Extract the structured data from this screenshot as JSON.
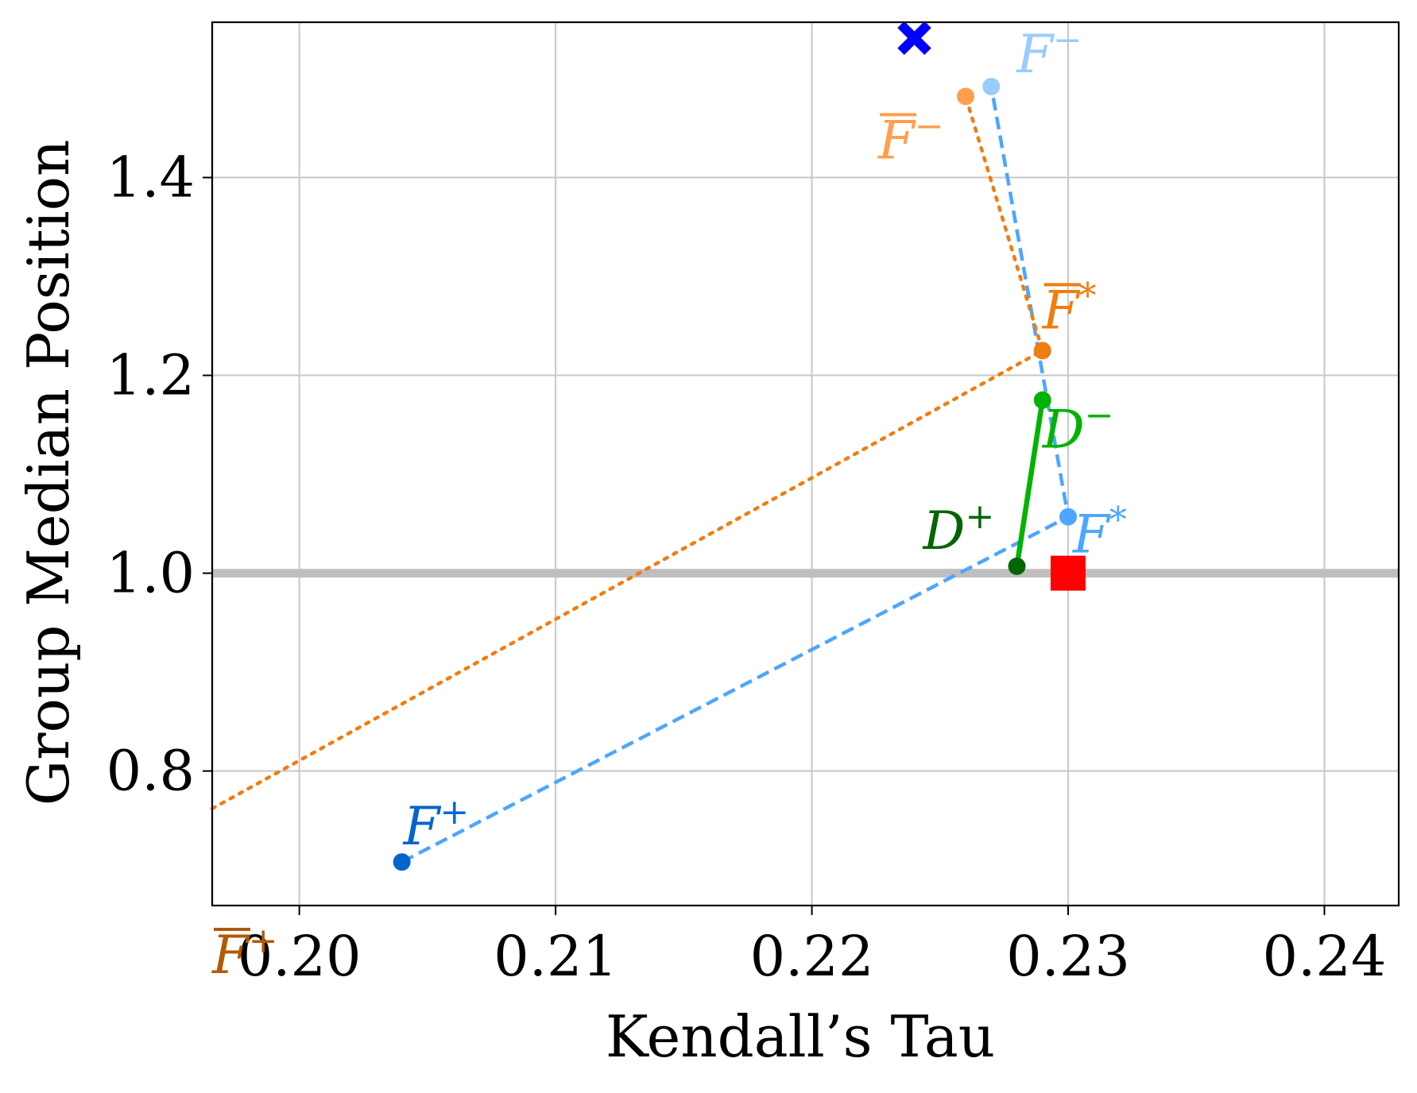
{
  "chart_data": {
    "type": "scatter",
    "xlabel": "Kendall’s Tau",
    "ylabel": "Group Median Position",
    "xlim": [
      0.1966,
      0.2429
    ],
    "ylim": [
      0.664,
      1.557
    ],
    "xticks": [
      0.2,
      0.21,
      0.22,
      0.23,
      0.24
    ],
    "xtick_labels": [
      "0.20",
      "0.21",
      "0.22",
      "0.23",
      "0.24"
    ],
    "yticks": [
      0.8,
      1.0,
      1.2,
      1.4
    ],
    "ytick_labels": [
      "0.8",
      "1.0",
      "1.2",
      "1.4"
    ],
    "grid": true,
    "reference_line": {
      "y": 1.0,
      "color": "#bfbfbf"
    },
    "series": [
      {
        "line_style": "dashed",
        "line_color": "#4da6ff",
        "points": [
          {
            "label": "F",
            "sup": "+",
            "overline": false,
            "x": 0.204,
            "y": 0.708,
            "color": "#0066cc",
            "label_color": "#0066cc"
          },
          {
            "label": "F",
            "sup": "*",
            "overline": false,
            "x": 0.23,
            "y": 1.057,
            "color": "#4da6ff",
            "label_color": "#4da6ff"
          },
          {
            "label": "F",
            "sup": "−",
            "overline": false,
            "x": 0.227,
            "y": 1.492,
            "color": "#99ccff",
            "label_color": "#99ccff"
          }
        ]
      },
      {
        "line_style": "dotted",
        "line_color": "#f07d10",
        "points": [
          {
            "label": "F",
            "sup": "+",
            "overline": true,
            "x": 0.1966,
            "y": 0.762,
            "color": "#b35900",
            "label_color": "#b35900"
          },
          {
            "label": "F",
            "sup": "*",
            "overline": true,
            "x": 0.229,
            "y": 1.225,
            "color": "#f07d10",
            "label_color": "#f07d10"
          },
          {
            "label": "F",
            "sup": "−",
            "overline": true,
            "x": 0.226,
            "y": 1.482,
            "color": "#ff9f4d",
            "label_color": "#ff9f4d"
          }
        ]
      },
      {
        "line_style": "solid",
        "line_color": "#00b300",
        "points": [
          {
            "label": "D",
            "sup": "+",
            "overline": false,
            "x": 0.228,
            "y": 1.007,
            "color": "#006600",
            "label_color": "#006600"
          },
          {
            "label": "D",
            "sup": "−",
            "overline": false,
            "x": 0.229,
            "y": 1.175,
            "color": "#00b300",
            "label_color": "#00b300"
          }
        ]
      }
    ],
    "markers": [
      {
        "shape": "x",
        "x": 0.224,
        "y": 1.541,
        "color": "#0000ff"
      },
      {
        "shape": "square",
        "x": 0.23,
        "y": 1.0,
        "color": "#ff0000"
      }
    ]
  }
}
